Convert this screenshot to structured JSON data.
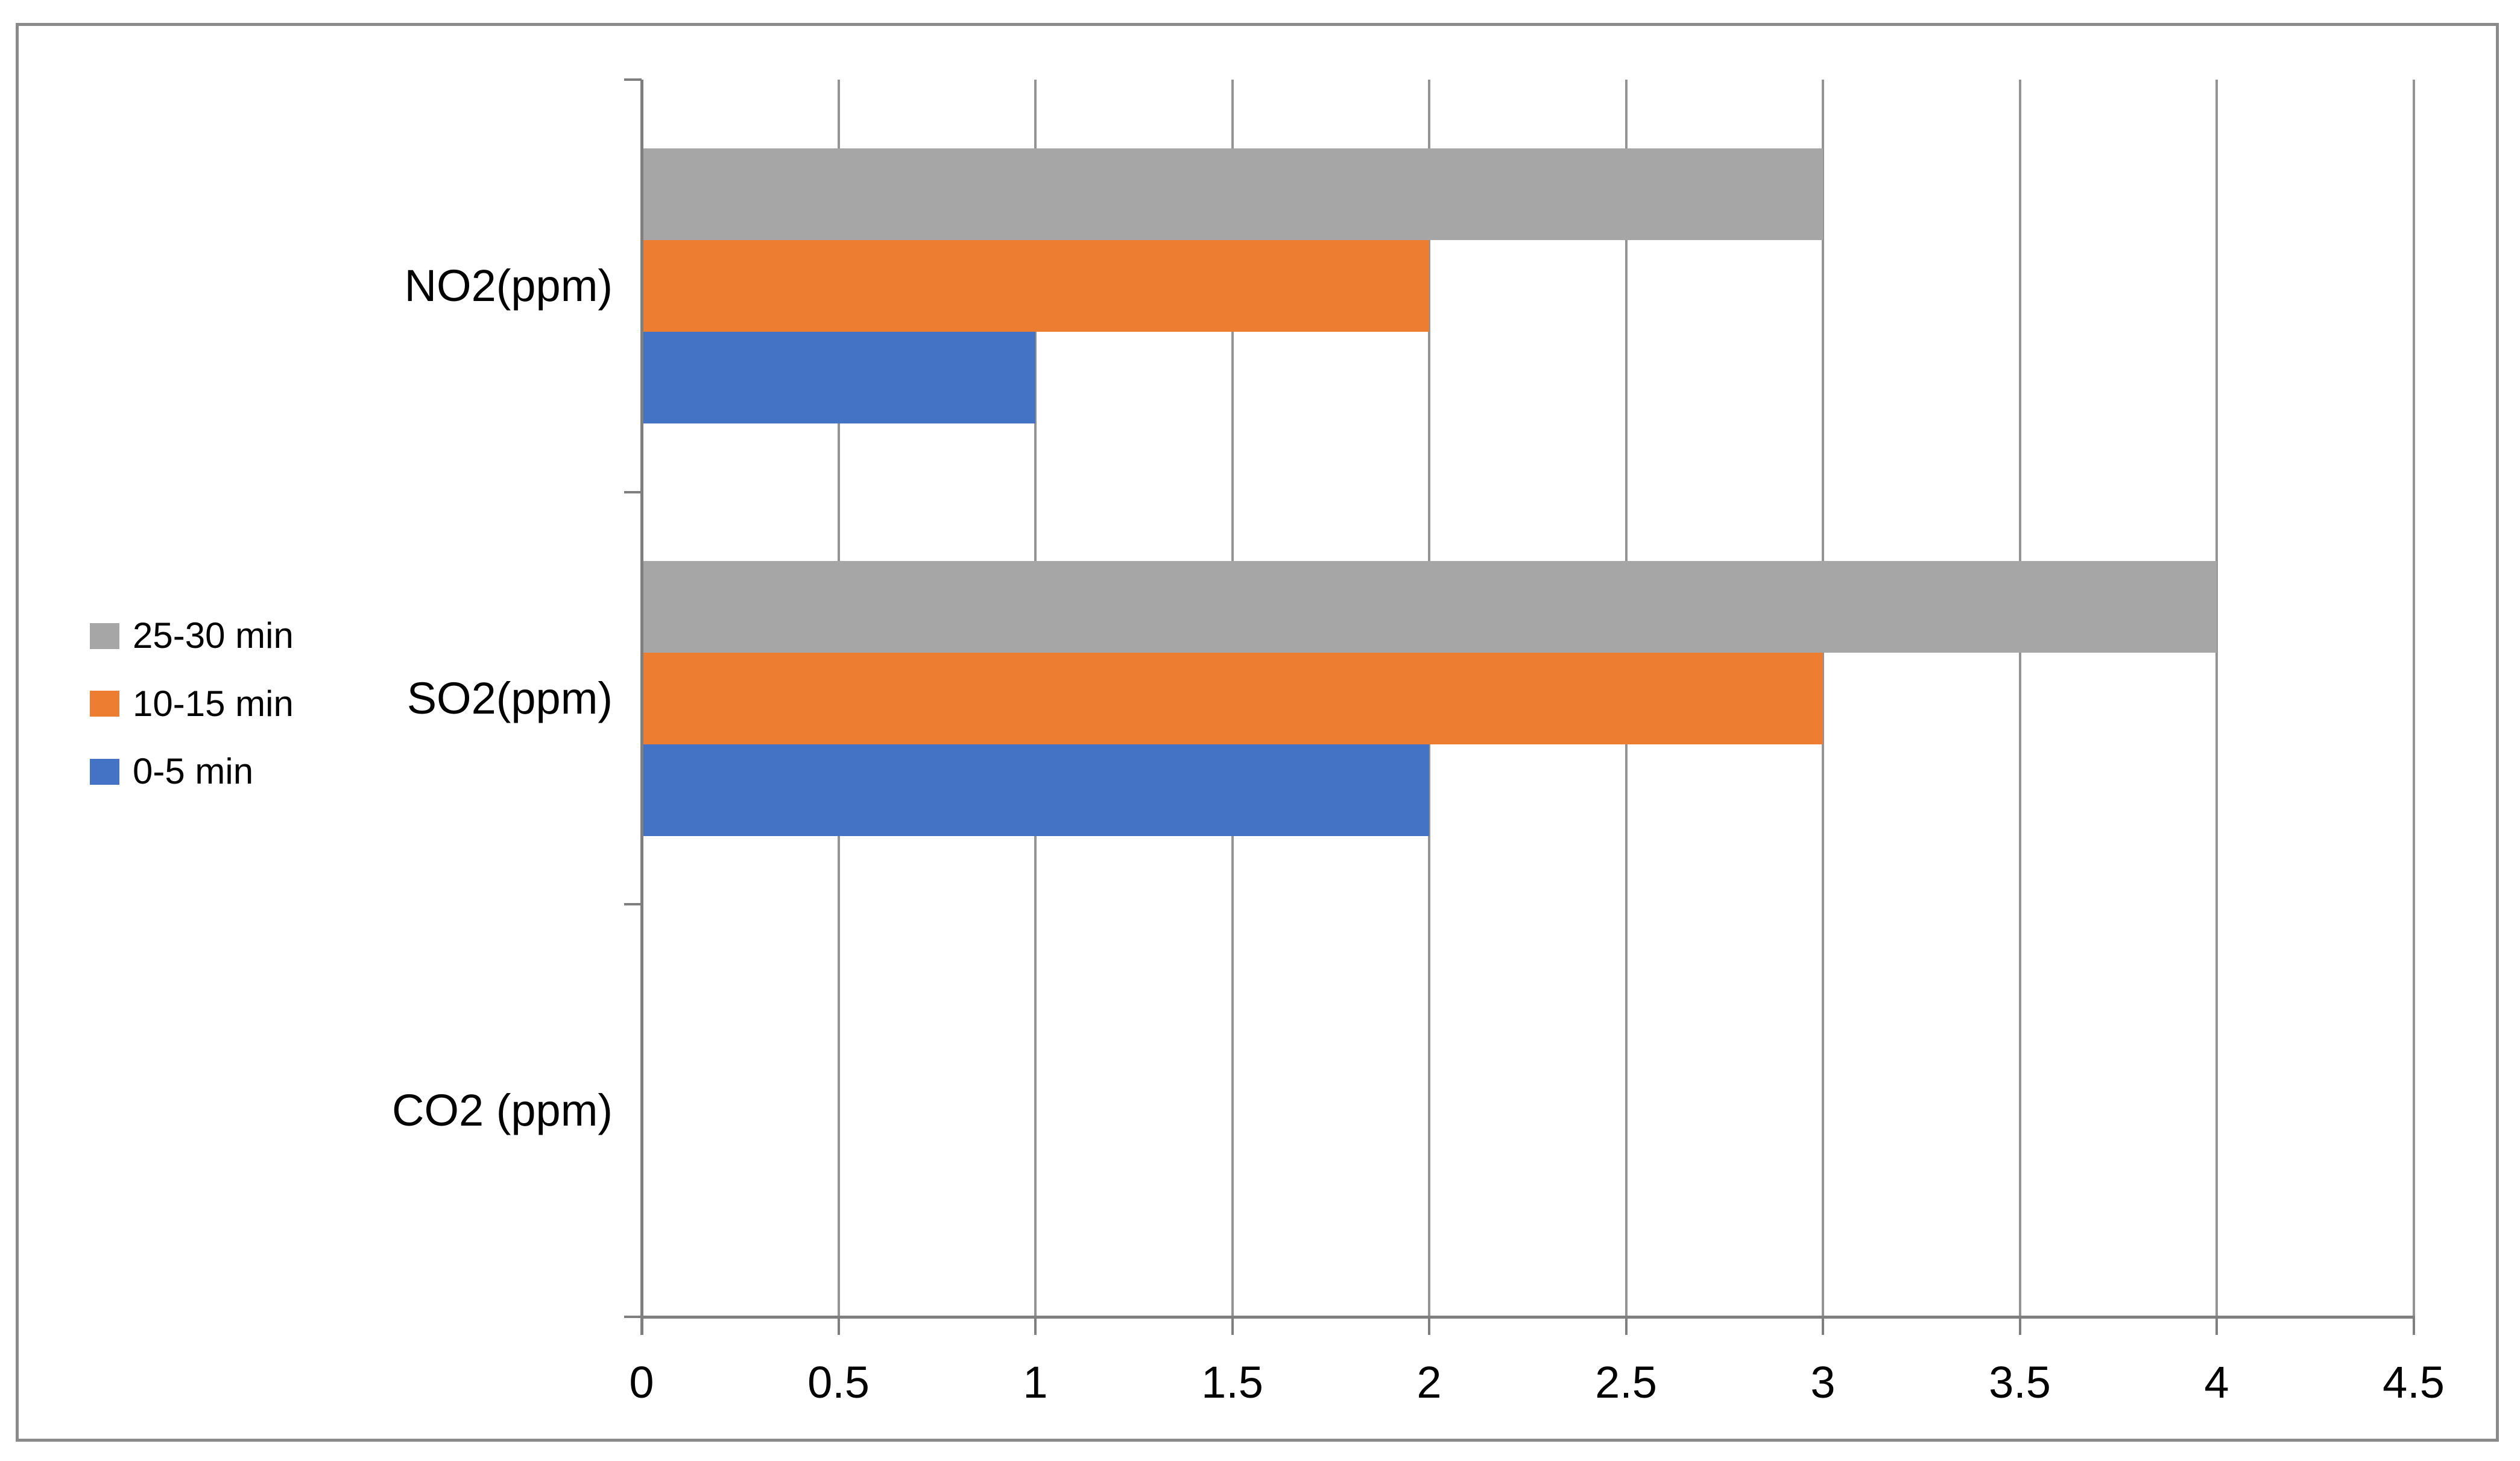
{
  "window": {
    "background": "#FFFFFF",
    "frame_border_color": "#8A8A8A"
  },
  "chart_data": {
    "type": "bar",
    "orientation": "horizontal",
    "title": "",
    "categories": [
      "NO2(ppm)",
      "SO2(ppm)",
      "CO2 (ppm)"
    ],
    "series": [
      {
        "name": "25-30 min",
        "color": "#A6A6A6",
        "values": [
          3,
          4,
          0
        ]
      },
      {
        "name": "10-15 min",
        "color": "#ED7D31",
        "values": [
          2,
          3,
          0
        ]
      },
      {
        "name": "0-5 min",
        "color": "#4472C4",
        "values": [
          1,
          2,
          0
        ]
      }
    ],
    "x_axis": {
      "min": 0,
      "max": 4.5,
      "step": 0.5,
      "tick_labels": [
        "0",
        "0.5",
        "1",
        "1.5",
        "2",
        "2.5",
        "3",
        "3.5",
        "4",
        "4.5"
      ]
    },
    "grid": true,
    "legend_position": "left",
    "axis_color": "#7F7F7F",
    "gridline_color": "#949494",
    "text_color": "#000000"
  }
}
